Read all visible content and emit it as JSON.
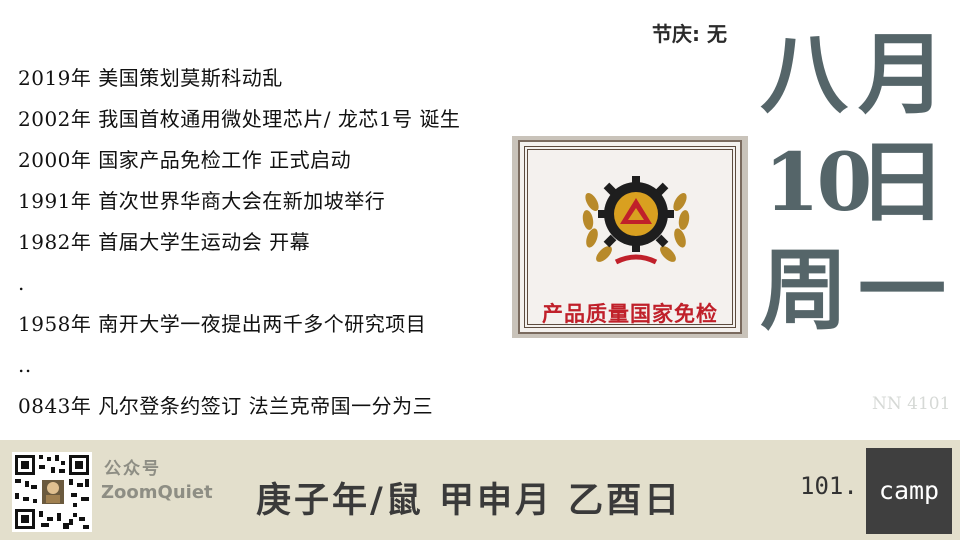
{
  "festival": "节庆:  无",
  "calendar": {
    "month_chars": [
      "八",
      "月"
    ],
    "day_chars": [
      "10",
      "日"
    ],
    "week_chars": [
      "周",
      "一"
    ]
  },
  "events": [
    "2019年 美国策划莫斯科动乱",
    "2002年 我国首枚通用微处理芯片/ 龙芯1号 诞生",
    "2000年 国家产品免检工作 正式启动",
    "1991年 首次世界华商大会在新加坡举行",
    "1982年 首届大学生运动会 开幕",
    ".",
    "1958年 南开大学一夜提出两千多个研究项目",
    "..",
    "0843年 凡尔登条约签订 法兰克帝国一分为三"
  ],
  "certificate": {
    "text": "产品质量国家免检"
  },
  "watermark": "NN 4101",
  "footer": {
    "public_account_label": "公众号",
    "public_account_name": "ZoomQuiet",
    "ganzhi": "庚子年/鼠  甲申月  乙酉日",
    "brand_prefix": "101.",
    "brand_suffix": "camp"
  },
  "colors": {
    "calendar": "#556569",
    "footer_bg": "#e3dfcc",
    "certificate_red": "#c0202a"
  },
  "icons": [
    "qr-code-icon",
    "quality-emblem-icon"
  ]
}
